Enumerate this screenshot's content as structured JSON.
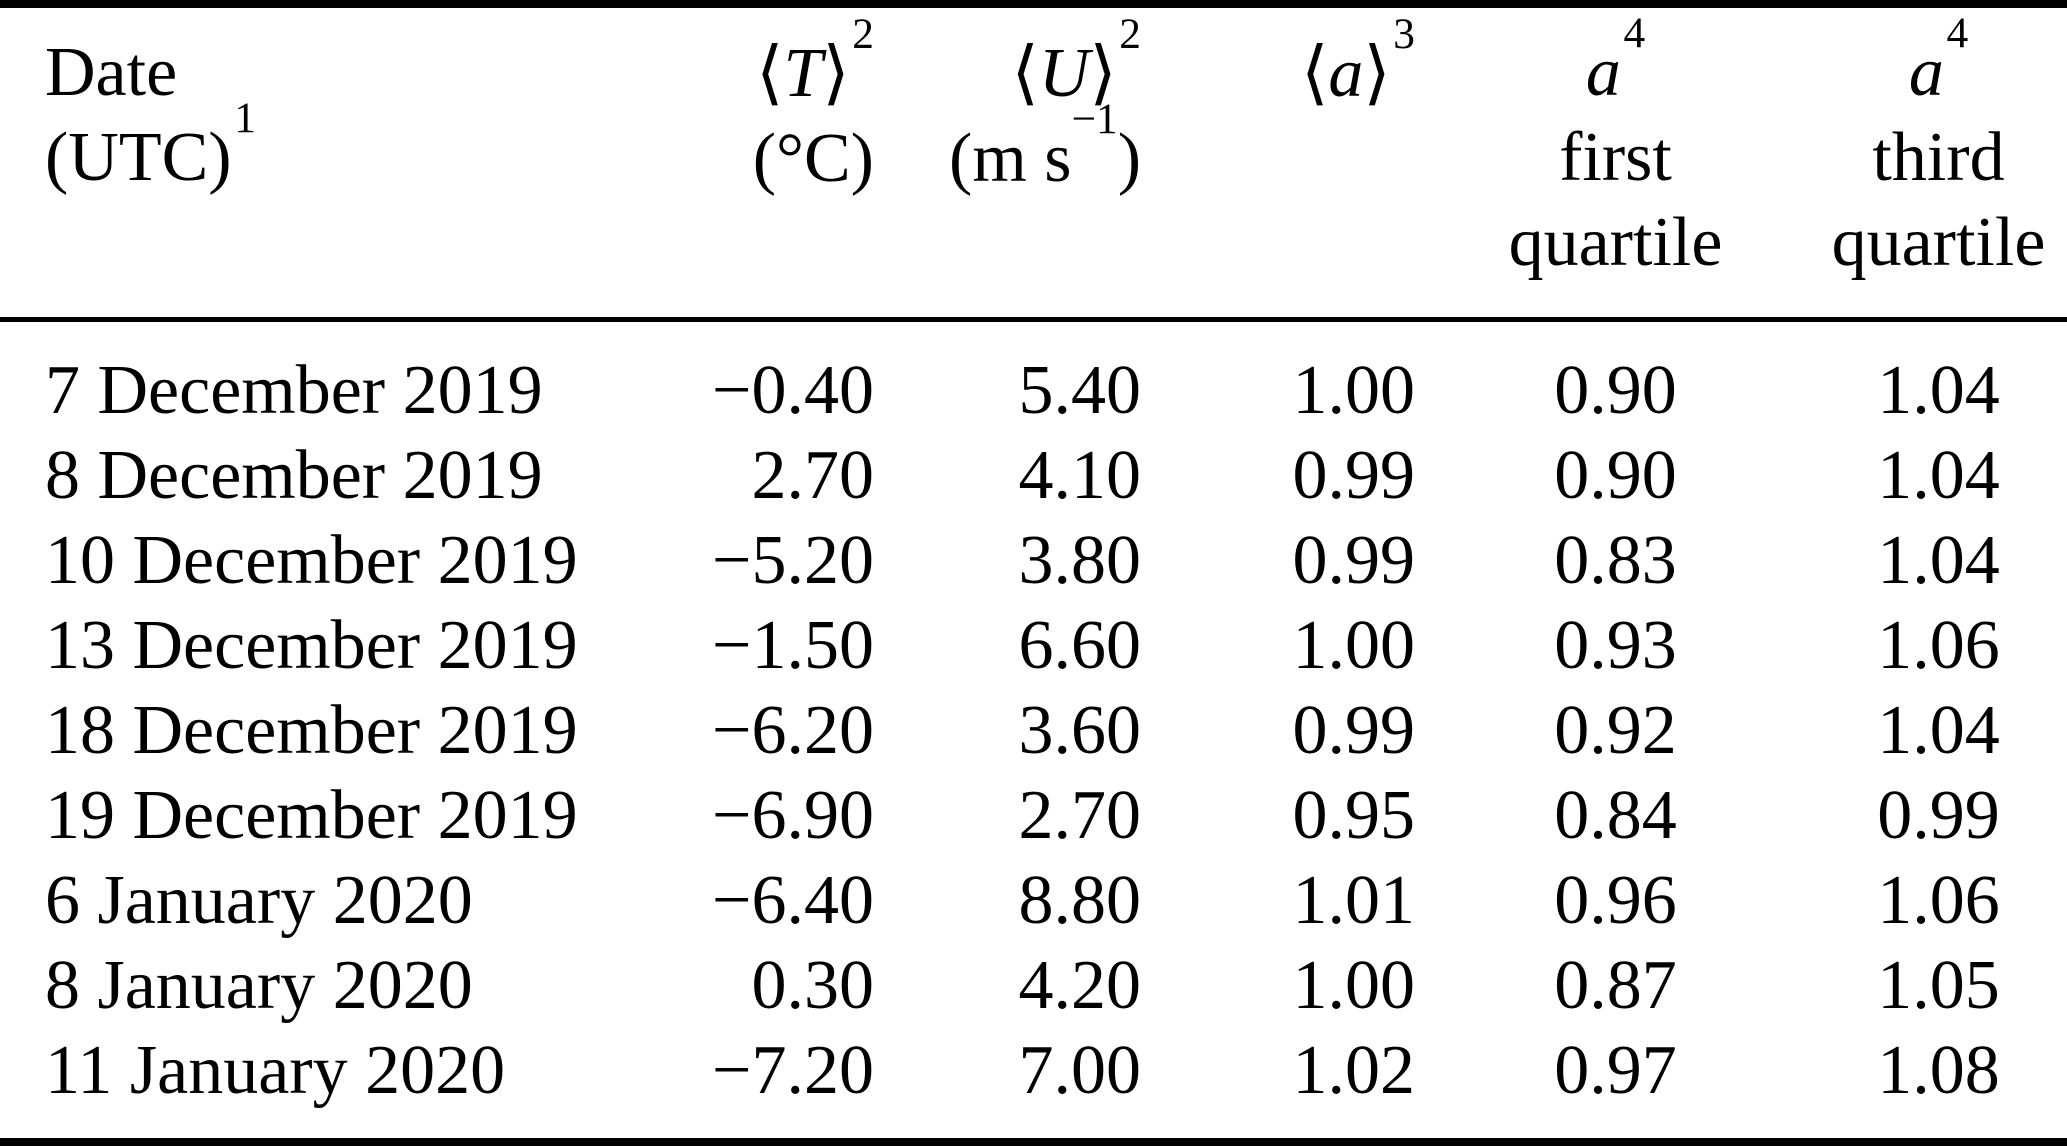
{
  "colors": {
    "background": "#ffffff",
    "text": "#000000",
    "rule": "#000000"
  },
  "table": {
    "header": {
      "date": {
        "line1": "Date",
        "line2_main": "(UTC)",
        "line2_sup": "1"
      },
      "temp": {
        "bra": "⟨",
        "var": "T",
        "ket": "⟩",
        "sup": "2",
        "unit": "(°C)"
      },
      "wind": {
        "bra": "⟨",
        "var": "U",
        "ket": "⟩",
        "sup": "2",
        "unit_pre": "(m s",
        "unit_sup": "−1",
        "unit_post": ")"
      },
      "albedo_mean": {
        "bra": "⟨",
        "var": "a",
        "ket": "⟩",
        "sup": "3"
      },
      "albedo_q1": {
        "var": "a",
        "sup": "4",
        "line2": "first",
        "line3": "quartile"
      },
      "albedo_q3": {
        "var": "a",
        "sup": "4",
        "line2": "third",
        "line3": "quartile"
      }
    },
    "rows": [
      {
        "date": "7 December 2019",
        "T": "−0.40",
        "U": "5.40",
        "a": "1.00",
        "q1": "0.90",
        "q3": "1.04"
      },
      {
        "date": "8 December 2019",
        "T": "2.70",
        "U": "4.10",
        "a": "0.99",
        "q1": "0.90",
        "q3": "1.04"
      },
      {
        "date": "10 December 2019",
        "T": "−5.20",
        "U": "3.80",
        "a": "0.99",
        "q1": "0.83",
        "q3": "1.04"
      },
      {
        "date": "13 December 2019",
        "T": "−1.50",
        "U": "6.60",
        "a": "1.00",
        "q1": "0.93",
        "q3": "1.06"
      },
      {
        "date": "18 December 2019",
        "T": "−6.20",
        "U": "3.60",
        "a": "0.99",
        "q1": "0.92",
        "q3": "1.04"
      },
      {
        "date": "19 December 2019",
        "T": "−6.90",
        "U": "2.70",
        "a": "0.95",
        "q1": "0.84",
        "q3": "0.99"
      },
      {
        "date": "6 January 2020",
        "T": "−6.40",
        "U": "8.80",
        "a": "1.01",
        "q1": "0.96",
        "q3": "1.06"
      },
      {
        "date": "8 January 2020",
        "T": "0.30",
        "U": "4.20",
        "a": "1.00",
        "q1": "0.87",
        "q3": "1.05"
      },
      {
        "date": "11 January 2020",
        "T": "−7.20",
        "U": "7.00",
        "a": "1.02",
        "q1": "0.97",
        "q3": "1.08"
      }
    ]
  },
  "chart_data": {
    "type": "table",
    "title": "",
    "columns": [
      "Date (UTC)",
      "⟨T⟩ (°C)",
      "⟨U⟩ (m s−1)",
      "⟨a⟩",
      "a first quartile",
      "a third quartile"
    ],
    "rows": [
      [
        "7 December 2019",
        -0.4,
        5.4,
        1.0,
        0.9,
        1.04
      ],
      [
        "8 December 2019",
        2.7,
        4.1,
        0.99,
        0.9,
        1.04
      ],
      [
        "10 December 2019",
        -5.2,
        3.8,
        0.99,
        0.83,
        1.04
      ],
      [
        "13 December 2019",
        -1.5,
        6.6,
        1.0,
        0.93,
        1.06
      ],
      [
        "18 December 2019",
        -6.2,
        3.6,
        0.99,
        0.92,
        1.04
      ],
      [
        "19 December 2019",
        -6.9,
        2.7,
        0.95,
        0.84,
        0.99
      ],
      [
        "6 January 2020",
        -6.4,
        8.8,
        1.01,
        0.96,
        1.06
      ],
      [
        "8 January 2020",
        0.3,
        4.2,
        1.0,
        0.87,
        1.05
      ],
      [
        "11 January 2020",
        -7.2,
        7.0,
        1.02,
        0.97,
        1.08
      ]
    ]
  }
}
